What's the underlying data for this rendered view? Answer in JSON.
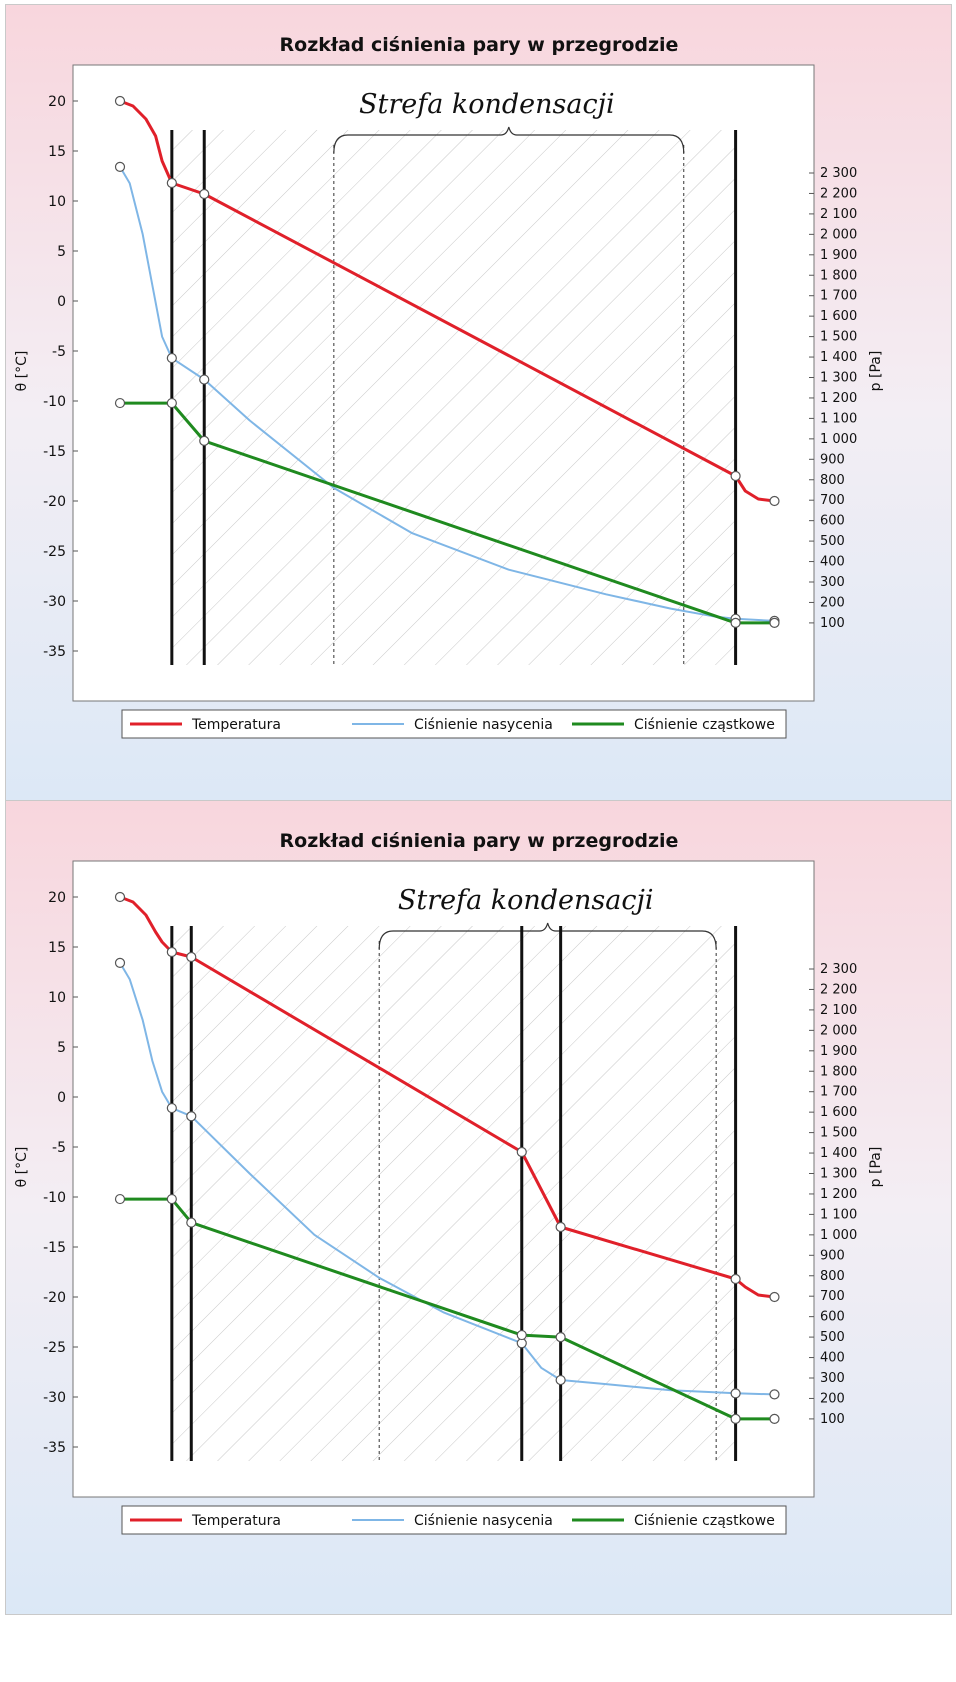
{
  "colors": {
    "temperature": "#e0202a",
    "saturation": "#7fb6e6",
    "partial": "#1f8a1f",
    "layer_line": "#111111",
    "hatch": "#c8c8c8"
  },
  "chart_data": [
    {
      "type": "line",
      "title": "Rozkład ciśnienia pary w przegrodzie",
      "annotation": "Strefa kondensacji",
      "ylabel": "θ [°C]",
      "y2label": "p [Pa]",
      "ylim": [
        -40,
        22
      ],
      "y2lim": [
        0,
        2450
      ],
      "y_ticks": [
        20,
        15,
        10,
        5,
        0,
        -5,
        -10,
        -15,
        -20,
        -25,
        -30,
        -35
      ],
      "y2_ticks": [
        2300,
        2200,
        2100,
        2000,
        1900,
        1800,
        1700,
        1600,
        1500,
        1400,
        1300,
        1200,
        1100,
        1000,
        900,
        800,
        700,
        600,
        500,
        400,
        300,
        200,
        100
      ],
      "y_tick_labels": [
        "20",
        "15",
        "10",
        "5",
        "0",
        "-5",
        "-10",
        "-15",
        "-20",
        "-25",
        "-30",
        "-35"
      ],
      "y2_tick_labels": [
        "2 300",
        "2 200",
        "2 100",
        "2 000",
        "1 900",
        "1 800",
        "1 700",
        "1 600",
        "1 500",
        "1 400",
        "1 300",
        "1 200",
        "1 100",
        "1 000",
        "900",
        "800",
        "700",
        "600",
        "500",
        "400",
        "300",
        "200",
        "100"
      ],
      "xlim": [
        0,
        100
      ],
      "layer_boundaries": [
        8,
        13,
        95
      ],
      "condensation_zone": [
        33,
        87
      ],
      "series": [
        {
          "name": "Temperatura",
          "axis": "left",
          "x": [
            0,
            2,
            4,
            5.5,
            6.5,
            8,
            13,
            95,
            96.5,
            98.5,
            101
          ],
          "y": [
            20,
            19.5,
            18.2,
            16.5,
            14,
            11.8,
            10.7,
            -17.5,
            -19,
            -19.8,
            -20
          ]
        },
        {
          "name": "Ciśnienie nasycenia",
          "axis": "right",
          "x": [
            0,
            1.5,
            3.5,
            5,
            6.5,
            8,
            13,
            20,
            33,
            45,
            60,
            75,
            85,
            92,
            95,
            101
          ],
          "y": [
            2330,
            2250,
            2000,
            1750,
            1500,
            1395,
            1290,
            1090,
            760,
            540,
            360,
            240,
            170,
            130,
            120,
            110
          ],
          "markers": [
            0,
            5,
            6,
            14,
            15
          ]
        },
        {
          "name": "Ciśnienie cząstkowe",
          "axis": "right",
          "x": [
            0,
            8,
            13,
            95,
            101
          ],
          "y": [
            1175,
            1175,
            990,
            100,
            100
          ]
        }
      ]
    },
    {
      "type": "line",
      "title": "Rozkład ciśnienia pary w przegrodzie",
      "annotation": "Strefa kondensacji",
      "ylabel": "θ [°C]",
      "y2label": "p [Pa]",
      "ylim": [
        -40,
        22
      ],
      "y2lim": [
        0,
        2450
      ],
      "y_ticks": [
        20,
        15,
        10,
        5,
        0,
        -5,
        -10,
        -15,
        -20,
        -25,
        -30,
        -35
      ],
      "y2_ticks": [
        2300,
        2200,
        2100,
        2000,
        1900,
        1800,
        1700,
        1600,
        1500,
        1400,
        1300,
        1200,
        1100,
        1000,
        900,
        800,
        700,
        600,
        500,
        400,
        300,
        200,
        100
      ],
      "y_tick_labels": [
        "20",
        "15",
        "10",
        "5",
        "0",
        "-5",
        "-10",
        "-15",
        "-20",
        "-25",
        "-30",
        "-35"
      ],
      "y2_tick_labels": [
        "2 300",
        "2 200",
        "2 100",
        "2 000",
        "1 900",
        "1 800",
        "1 700",
        "1 600",
        "1 500",
        "1 400",
        "1 300",
        "1 200",
        "1 100",
        "1 000",
        "900",
        "800",
        "700",
        "600",
        "500",
        "400",
        "300",
        "200",
        "100"
      ],
      "xlim": [
        0,
        100
      ],
      "layer_boundaries": [
        8,
        11,
        62,
        68,
        95
      ],
      "condensation_zone": [
        40,
        92
      ],
      "series": [
        {
          "name": "Temperatura",
          "axis": "left",
          "x": [
            0,
            2,
            4,
            5.5,
            6.5,
            8,
            11,
            62,
            68,
            95,
            96.5,
            98.5,
            101
          ],
          "y": [
            20,
            19.5,
            18.2,
            16.5,
            15.5,
            14.5,
            14,
            -5.5,
            -13,
            -18.2,
            -19,
            -19.8,
            -20
          ]
        },
        {
          "name": "Ciśnienie nasycenia",
          "axis": "right",
          "x": [
            0,
            1.5,
            3.5,
            5,
            6.5,
            8,
            11,
            20,
            30,
            40,
            50,
            62,
            65,
            68,
            75,
            85,
            95,
            101
          ],
          "y": [
            2330,
            2250,
            2050,
            1850,
            1700,
            1620,
            1580,
            1300,
            1000,
            790,
            620,
            470,
            350,
            290,
            270,
            240,
            225,
            220
          ],
          "markers": [
            0,
            5,
            6,
            11,
            13,
            16,
            17
          ]
        },
        {
          "name": "Ciśnienie cząstkowe",
          "axis": "right",
          "x": [
            0,
            8,
            11,
            62,
            68,
            95,
            101
          ],
          "y": [
            1175,
            1175,
            1060,
            510,
            500,
            100,
            100
          ]
        }
      ]
    }
  ]
}
